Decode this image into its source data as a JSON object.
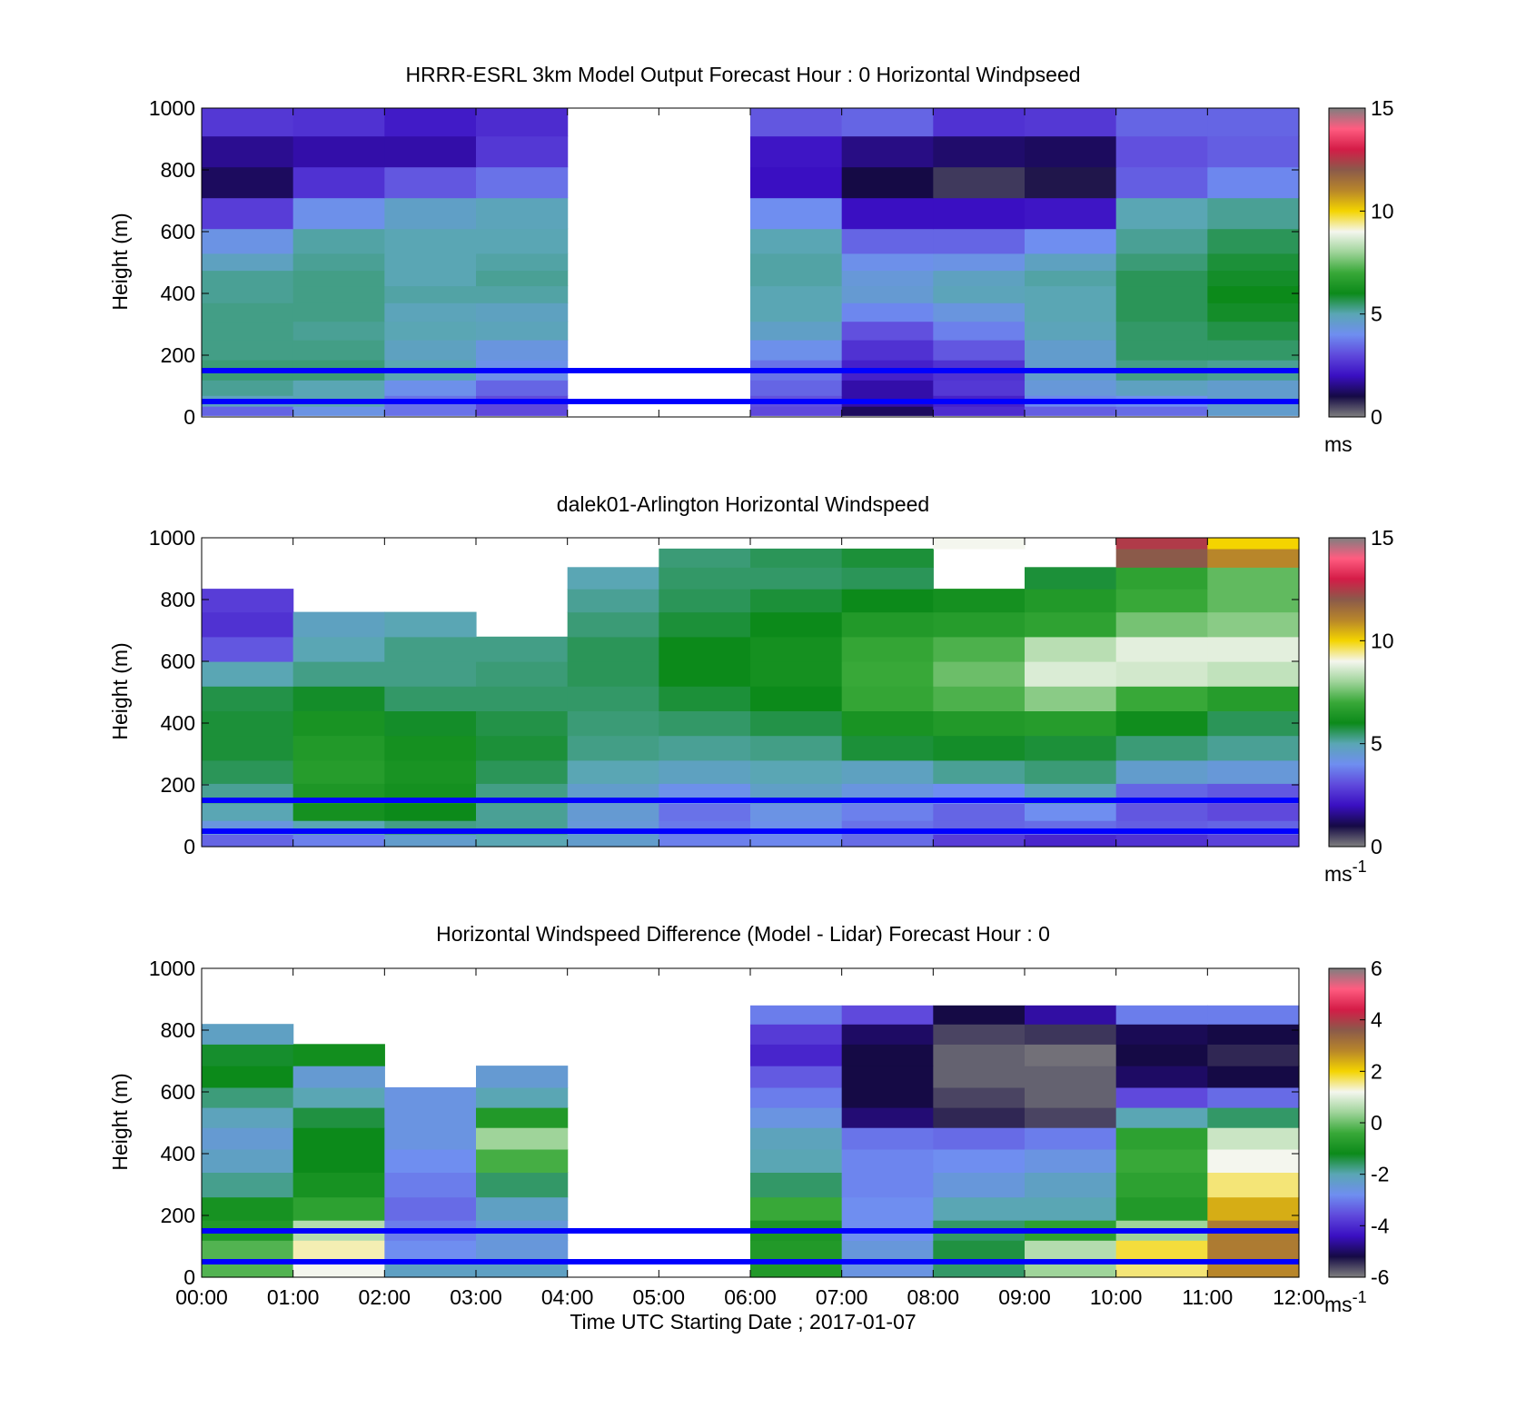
{
  "figure": {
    "xtick_labels": [
      "00:00",
      "01:00",
      "02:00",
      "03:00",
      "04:00",
      "05:00",
      "06:00",
      "07:00",
      "08:00",
      "09:00",
      "10:00",
      "11:00",
      "12:00"
    ],
    "xlabel": "Time UTC  Starting Date ; 2017-01-07"
  },
  "colors": {
    "reference_lines": "#0000ff",
    "colormap_stops": [
      "#7f7f7f",
      "#150a45",
      "#3a0fc2",
      "#5f49dc",
      "#6f8ef0",
      "#5aa6b4",
      "#0c8a1a",
      "#38a838",
      "#9fd49a",
      "#f4f6ee",
      "#f4d400",
      "#b8862a",
      "#8b5a4a",
      "#d41c47",
      "#ff5c80",
      "#7f7f7f"
    ]
  },
  "chart_data": [
    {
      "type": "heatmap",
      "title": "HRRR-ESRL 3km Model Output   Forecast Hour : 0 Horizontal Windpseed",
      "ylabel": "Height (m)",
      "xlim": [
        "00:00",
        "12:00"
      ],
      "ylim": [
        0,
        1000
      ],
      "yticks": [
        0,
        200,
        400,
        600,
        800,
        1000
      ],
      "reference_lines_m": [
        50,
        150
      ],
      "colorbar": {
        "ticks": [
          0,
          5,
          10,
          15
        ],
        "range": [
          0,
          15
        ],
        "unit": "ms"
      },
      "hours": [
        0,
        1,
        2,
        3,
        4,
        5,
        6,
        7,
        8,
        9,
        10,
        11
      ],
      "height_levels_m": [
        20,
        50,
        90,
        150,
        220,
        280,
        340,
        400,
        450,
        500,
        560,
        660,
        760,
        860,
        960
      ],
      "values": [
        [
          3.4,
          4.2,
          3.6,
          3.0,
          null,
          null,
          3.0,
          1.2,
          2.5,
          3.3,
          3.5,
          4.6
        ],
        [
          4.8,
          5.0,
          3.6,
          3.0,
          null,
          null,
          3.1,
          1.8,
          2.3,
          3.9,
          4.0,
          4.6
        ],
        [
          5.2,
          5.0,
          4.1,
          3.4,
          null,
          null,
          3.4,
          1.8,
          2.7,
          4.4,
          4.8,
          4.6
        ],
        [
          5.4,
          5.4,
          5.0,
          4.1,
          null,
          null,
          3.6,
          2.3,
          2.6,
          4.6,
          5.3,
          5.2
        ],
        [
          5.3,
          5.3,
          4.8,
          4.3,
          null,
          null,
          4.1,
          2.6,
          3.2,
          4.6,
          5.5,
          5.5
        ],
        [
          5.3,
          5.2,
          5.0,
          4.9,
          null,
          null,
          4.7,
          3.1,
          3.8,
          4.9,
          5.5,
          5.7
        ],
        [
          5.3,
          5.3,
          4.9,
          4.8,
          null,
          null,
          5.0,
          3.9,
          4.3,
          5.0,
          5.6,
          5.9
        ],
        [
          5.2,
          5.3,
          5.1,
          5.1,
          null,
          null,
          5.0,
          4.5,
          4.9,
          5.0,
          5.6,
          6.0
        ],
        [
          5.2,
          5.3,
          5.0,
          5.2,
          null,
          null,
          5.1,
          4.4,
          4.8,
          5.1,
          5.6,
          5.9
        ],
        [
          4.8,
          5.2,
          5.0,
          5.1,
          null,
          null,
          5.1,
          4.1,
          4.2,
          4.8,
          5.4,
          5.8
        ],
        [
          4.2,
          5.1,
          5.0,
          5.0,
          null,
          null,
          5.0,
          3.4,
          3.4,
          4.0,
          5.2,
          5.6
        ],
        [
          2.8,
          4.1,
          4.7,
          4.9,
          null,
          null,
          4.0,
          2.0,
          2.0,
          2.1,
          5.0,
          5.2
        ],
        [
          1.2,
          2.6,
          3.2,
          3.6,
          null,
          null,
          2.0,
          1.0,
          0.6,
          0.9,
          3.3,
          3.9
        ],
        [
          1.6,
          1.8,
          1.8,
          2.7,
          null,
          null,
          2.1,
          1.5,
          1.3,
          1.2,
          3.1,
          3.3
        ],
        [
          2.7,
          2.6,
          2.2,
          2.5,
          null,
          null,
          3.2,
          3.4,
          2.6,
          2.7,
          3.4,
          3.4
        ]
      ]
    },
    {
      "type": "heatmap",
      "title": "dalek01-Arlington  Horizontal Windspeed",
      "ylabel": "Height (m)",
      "xlim": [
        "00:00",
        "12:00"
      ],
      "ylim": [
        0,
        1000
      ],
      "yticks": [
        0,
        200,
        400,
        600,
        800,
        1000
      ],
      "reference_lines_m": [
        50,
        150
      ],
      "colorbar": {
        "ticks": [
          0,
          5,
          10,
          15
        ],
        "range": [
          0,
          15
        ],
        "unit": "ms-1"
      },
      "hours": [
        0,
        1,
        2,
        3,
        4,
        5,
        6,
        7,
        8,
        9,
        10,
        11
      ],
      "height_levels_m": [
        20,
        60,
        110,
        170,
        240,
        320,
        400,
        480,
        560,
        640,
        720,
        800,
        870,
        940,
        990
      ],
      "values": [
        [
          3.4,
          3.8,
          4.6,
          5.0,
          4.6,
          3.8,
          3.9,
          3.5,
          2.8,
          2.4,
          2.6,
          2.9
        ],
        [
          4.3,
          5.0,
          5.3,
          5.2,
          4.4,
          3.7,
          4.1,
          3.6,
          3.4,
          3.5,
          3.3,
          3.4
        ],
        [
          5.0,
          6.2,
          6.0,
          5.2,
          4.5,
          3.6,
          4.2,
          3.8,
          3.4,
          4.0,
          3.2,
          3.0
        ],
        [
          5.2,
          6.4,
          6.2,
          5.3,
          4.6,
          4.1,
          4.7,
          4.3,
          4.0,
          4.9,
          3.4,
          3.2
        ],
        [
          5.6,
          6.6,
          6.3,
          5.6,
          5.0,
          4.8,
          5.0,
          4.8,
          5.2,
          5.4,
          4.6,
          4.4
        ],
        [
          5.8,
          6.5,
          6.2,
          5.8,
          5.3,
          5.2,
          5.3,
          5.8,
          5.9,
          5.8,
          5.4,
          5.2
        ],
        [
          5.8,
          6.3,
          5.9,
          5.7,
          5.4,
          5.5,
          5.7,
          6.3,
          6.5,
          6.6,
          6.1,
          5.6
        ],
        [
          5.7,
          5.9,
          5.5,
          5.5,
          5.5,
          5.8,
          6.0,
          6.9,
          7.2,
          7.8,
          7.0,
          6.6
        ],
        [
          5.0,
          5.3,
          5.3,
          5.4,
          5.6,
          6.0,
          6.2,
          7.0,
          7.5,
          8.7,
          8.6,
          8.4
        ],
        [
          3.2,
          5.0,
          5.3,
          5.3,
          5.6,
          6.0,
          6.2,
          6.9,
          7.2,
          8.3,
          8.8,
          8.8
        ],
        [
          2.6,
          4.8,
          5.0,
          null,
          5.4,
          5.8,
          6.0,
          6.5,
          6.6,
          6.8,
          7.6,
          7.8
        ],
        [
          2.8,
          null,
          null,
          null,
          5.2,
          5.6,
          5.8,
          6.0,
          6.2,
          6.5,
          7.0,
          7.4
        ],
        [
          null,
          null,
          null,
          null,
          5.0,
          5.5,
          5.5,
          5.6,
          null,
          5.8,
          6.8,
          7.4
        ],
        [
          null,
          null,
          null,
          null,
          null,
          5.4,
          5.6,
          5.8,
          null,
          null,
          12.0,
          11.0
        ],
        [
          null,
          null,
          null,
          null,
          null,
          null,
          null,
          null,
          9.0,
          null,
          12.5,
          10.0
        ]
      ]
    },
    {
      "type": "heatmap",
      "title": "Horizontal Windspeed Difference (Model - Lidar) Forecast Hour : 0",
      "ylabel": "Height (m)",
      "xlabel": "Time UTC  Starting Date ; 2017-01-07",
      "xlim": [
        "00:00",
        "12:00"
      ],
      "ylim": [
        0,
        1000
      ],
      "yticks": [
        0,
        200,
        400,
        600,
        800,
        1000
      ],
      "reference_lines_m": [
        50,
        150
      ],
      "colorbar": {
        "ticks": [
          -6,
          -4,
          -2,
          0,
          2,
          4,
          6
        ],
        "range": [
          -6,
          6
        ],
        "unit": "ms-1"
      },
      "hours": [
        0,
        1,
        2,
        3,
        4,
        5,
        6,
        7,
        8,
        9,
        10,
        11
      ],
      "height_levels_m": [
        30,
        90,
        150,
        220,
        300,
        380,
        450,
        520,
        580,
        650,
        720,
        790,
        850
      ],
      "values": [
        [
          -0.2,
          1.2,
          -2.2,
          -2.2,
          null,
          null,
          -0.8,
          -2.6,
          -1.6,
          0.4,
          1.6,
          2.8
        ],
        [
          -0.2,
          1.4,
          -2.8,
          -2.5,
          null,
          null,
          -0.8,
          -2.5,
          -1.4,
          0.6,
          1.8,
          3.0
        ],
        [
          -0.8,
          0.6,
          -3.0,
          -2.5,
          null,
          null,
          -0.9,
          -2.8,
          -1.6,
          -0.6,
          0.4,
          3.0
        ],
        [
          -1.0,
          -0.6,
          -3.2,
          -2.2,
          null,
          null,
          -0.4,
          -2.8,
          -2.0,
          -2.0,
          -0.8,
          2.4
        ],
        [
          -1.8,
          -1.0,
          -3.0,
          -1.6,
          null,
          null,
          -1.6,
          -2.9,
          -2.5,
          -2.2,
          -0.6,
          1.6
        ],
        [
          -2.2,
          -1.2,
          -2.8,
          -0.3,
          null,
          null,
          -2.0,
          -2.9,
          -2.8,
          -2.6,
          -0.4,
          1.2
        ],
        [
          -2.4,
          -1.2,
          -2.6,
          0.4,
          null,
          null,
          -2.1,
          -3.1,
          -3.2,
          -3.0,
          -0.6,
          0.8
        ],
        [
          -2.1,
          -1.4,
          -2.6,
          -0.8,
          null,
          null,
          -2.6,
          -4.9,
          -5.4,
          -5.6,
          -2.0,
          -1.6
        ],
        [
          -1.7,
          -2.0,
          -2.6,
          -2.0,
          null,
          null,
          -3.0,
          -5.2,
          -5.6,
          -5.8,
          -3.6,
          -3.2
        ],
        [
          -1.2,
          -2.4,
          null,
          -2.4,
          null,
          null,
          -3.4,
          -5.2,
          -5.8,
          -5.8,
          -5.0,
          -5.2
        ],
        [
          -1.3,
          -1.1,
          null,
          null,
          null,
          null,
          -4.1,
          -5.2,
          -5.8,
          -5.9,
          -5.2,
          -5.4
        ],
        [
          -2.2,
          null,
          null,
          null,
          null,
          null,
          -3.8,
          -5.0,
          -5.6,
          -5.5,
          -5.1,
          -5.2
        ],
        [
          null,
          null,
          null,
          null,
          null,
          null,
          -3.0,
          -3.6,
          -5.2,
          -4.6,
          -3.0,
          -3.0
        ]
      ]
    }
  ]
}
